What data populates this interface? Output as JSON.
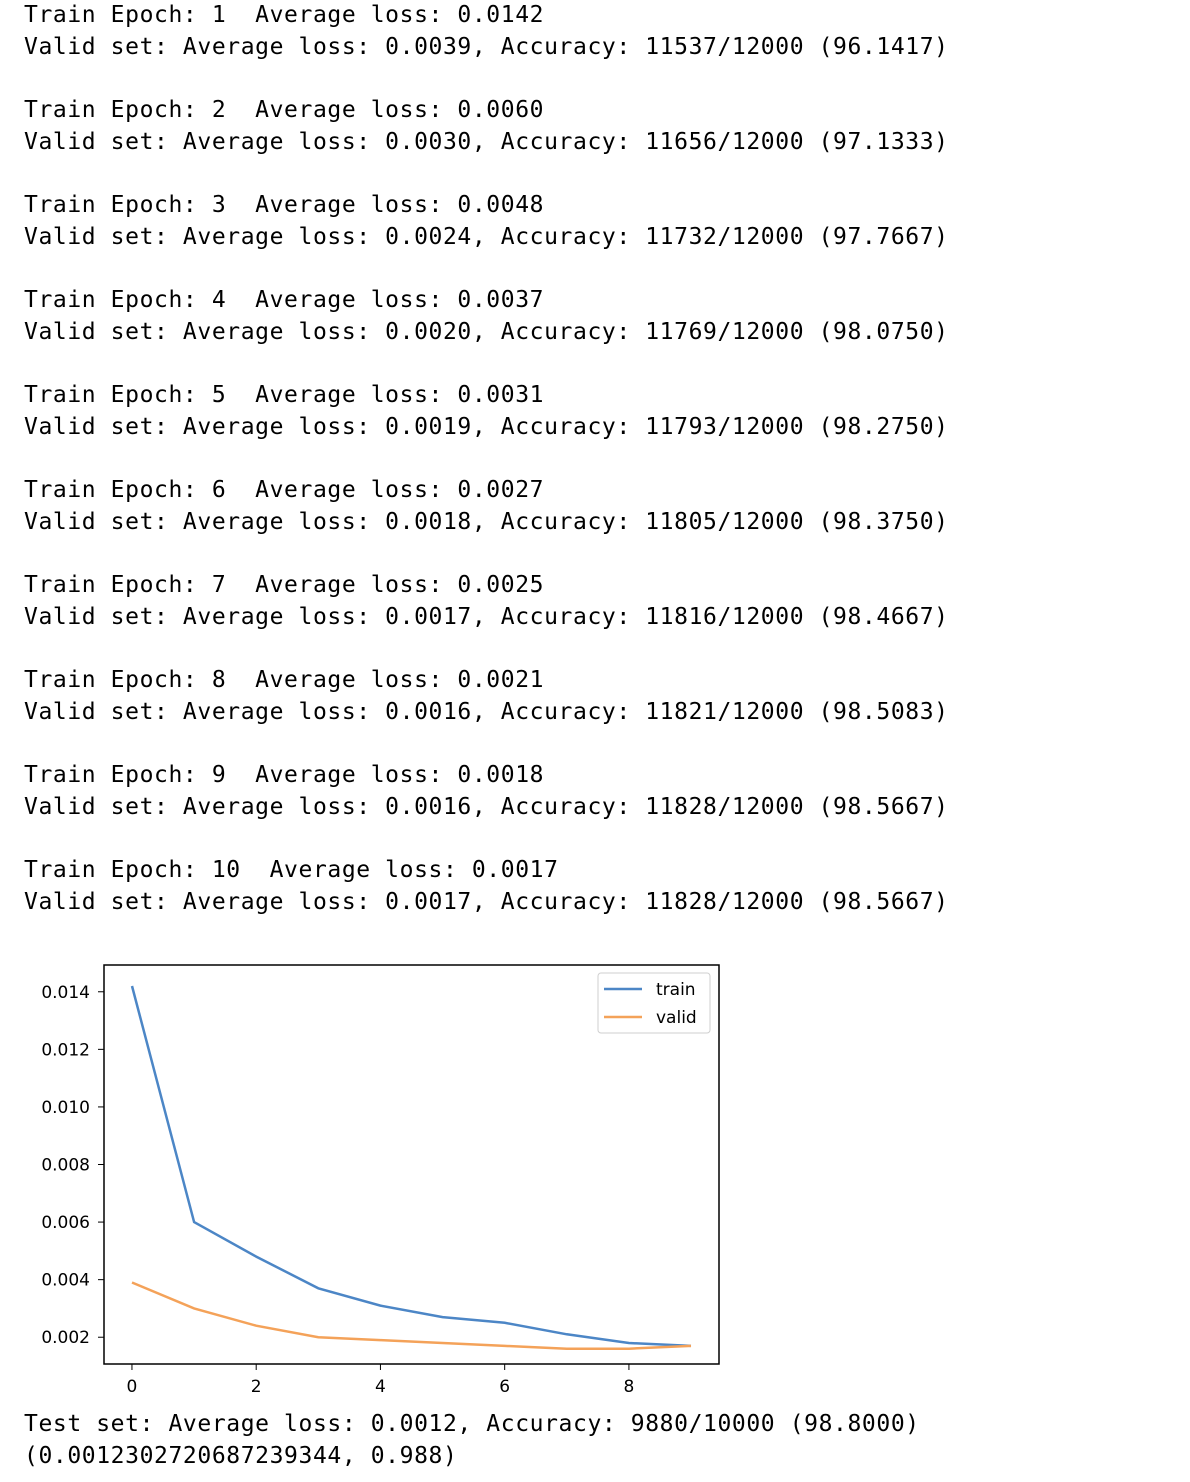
{
  "log": [
    {
      "train": "Train Epoch: 1  Average loss: 0.0142",
      "valid": "Valid set: Average loss: 0.0039, Accuracy: 11537/12000 (96.1417)"
    },
    {
      "train": "Train Epoch: 2  Average loss: 0.0060",
      "valid": "Valid set: Average loss: 0.0030, Accuracy: 11656/12000 (97.1333)"
    },
    {
      "train": "Train Epoch: 3  Average loss: 0.0048",
      "valid": "Valid set: Average loss: 0.0024, Accuracy: 11732/12000 (97.7667)"
    },
    {
      "train": "Train Epoch: 4  Average loss: 0.0037",
      "valid": "Valid set: Average loss: 0.0020, Accuracy: 11769/12000 (98.0750)"
    },
    {
      "train": "Train Epoch: 5  Average loss: 0.0031",
      "valid": "Valid set: Average loss: 0.0019, Accuracy: 11793/12000 (98.2750)"
    },
    {
      "train": "Train Epoch: 6  Average loss: 0.0027",
      "valid": "Valid set: Average loss: 0.0018, Accuracy: 11805/12000 (98.3750)"
    },
    {
      "train": "Train Epoch: 7  Average loss: 0.0025",
      "valid": "Valid set: Average loss: 0.0017, Accuracy: 11816/12000 (98.4667)"
    },
    {
      "train": "Train Epoch: 8  Average loss: 0.0021",
      "valid": "Valid set: Average loss: 0.0016, Accuracy: 11821/12000 (98.5083)"
    },
    {
      "train": "Train Epoch: 9  Average loss: 0.0018",
      "valid": "Valid set: Average loss: 0.0016, Accuracy: 11828/12000 (98.5667)"
    },
    {
      "train": "Train Epoch: 10  Average loss: 0.0017",
      "valid": "Valid set: Average loss: 0.0017, Accuracy: 11828/12000 (98.5667)"
    }
  ],
  "test_line": "Test set: Average loss: 0.0012, Accuracy: 9880/10000 (98.8000)",
  "result_tuple": "(0.0012302720687239344, 0.988)",
  "chart_data": {
    "type": "line",
    "x": [
      0,
      1,
      2,
      3,
      4,
      5,
      6,
      7,
      8,
      9
    ],
    "series": [
      {
        "name": "train",
        "color": "#4c86c6",
        "values": [
          0.0142,
          0.006,
          0.0048,
          0.0037,
          0.0031,
          0.0027,
          0.0025,
          0.0021,
          0.0018,
          0.0017
        ]
      },
      {
        "name": "valid",
        "color": "#f4a259",
        "values": [
          0.0039,
          0.003,
          0.0024,
          0.002,
          0.0019,
          0.0018,
          0.0017,
          0.0016,
          0.0016,
          0.0017
        ]
      }
    ],
    "xticks": [
      "0",
      "2",
      "4",
      "6",
      "8"
    ],
    "yticks": [
      "0.002",
      "0.004",
      "0.006",
      "0.008",
      "0.010",
      "0.012",
      "0.014"
    ],
    "xlim": [
      -0.45,
      9.45
    ],
    "ylim": [
      0.00107,
      0.01493
    ],
    "grid": false,
    "legend_position": "top-right"
  }
}
